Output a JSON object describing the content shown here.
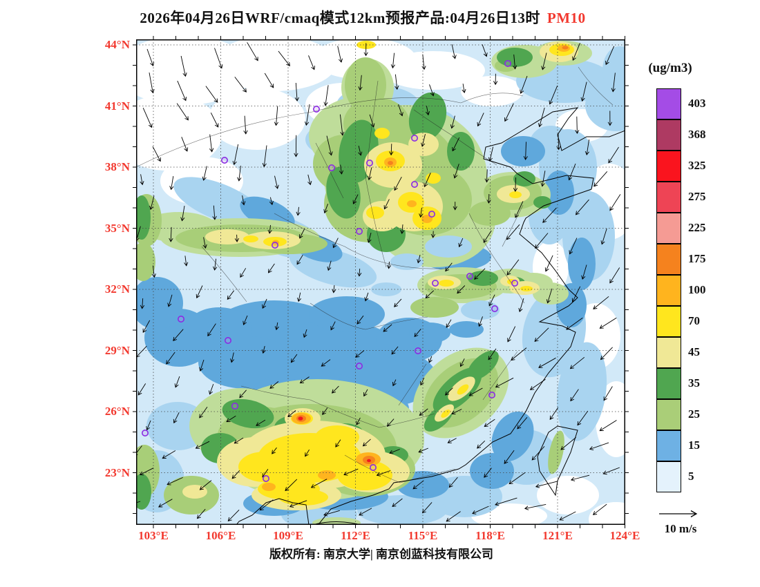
{
  "title": {
    "text": "2026年04月26日WRF/cmaq模式12km预报产品:04月26日13时",
    "pollutant": "PM10"
  },
  "colorbar": {
    "unit": "(ug/m3)",
    "levels": [
      "403",
      "368",
      "325",
      "275",
      "225",
      "175",
      "100",
      "70",
      "45",
      "35",
      "25",
      "15",
      "5"
    ],
    "colors": [
      "#A44CE6",
      "#AE3A62",
      "#FA141E",
      "#EE4455",
      "#F59B94",
      "#F5821E",
      "#FFB41E",
      "#FFE61E",
      "#F0E896",
      "#50A650",
      "#AACE78",
      "#6EB1E4",
      "#E4F2FC"
    ]
  },
  "axes": {
    "lat": [
      "44°N",
      "41°N",
      "38°N",
      "35°N",
      "32°N",
      "29°N",
      "26°N",
      "23°N"
    ],
    "lon": [
      "103°E",
      "106°E",
      "109°E",
      "112°E",
      "115°E",
      "118°E",
      "121°E",
      "124°E"
    ]
  },
  "wind_legend": {
    "label": "10 m/s"
  },
  "footer": {
    "text": "版权所有: 南京大学| 南京创蓝科技有限公司"
  },
  "colors": {
    "accent_red": "#F2382E",
    "axis_label": "#F2382E",
    "marker": "#8A2BE2"
  },
  "chart_data": {
    "type": "heatmap",
    "title": "2026年04月26日WRF/cmaq模式12km预报产品:04月26日13时 PM10",
    "variable": "PM10",
    "unit": "ug/m3",
    "levels": [
      5,
      15,
      25,
      35,
      45,
      70,
      100,
      175,
      225,
      275,
      325,
      368,
      403
    ],
    "palette_low_to_high": [
      "#E4F2FC",
      "#6EB1E4",
      "#AACE78",
      "#50A650",
      "#F0E896",
      "#FFE61E",
      "#FFB41E",
      "#F5821E",
      "#F59B94",
      "#EE4455",
      "#FA141E",
      "#AE3A62",
      "#A44CE6"
    ],
    "x_axis": {
      "label": "longitude",
      "ticks": [
        "103°E",
        "106°E",
        "109°E",
        "112°E",
        "115°E",
        "118°E",
        "121°E",
        "124°E"
      ]
    },
    "y_axis": {
      "label": "latitude",
      "ticks": [
        "23°N",
        "26°N",
        "29°N",
        "32°N",
        "35°N",
        "38°N",
        "41°N",
        "44°N"
      ]
    },
    "overlays": [
      "wind vectors (10 m/s reference arrow)",
      "purple city markers",
      "coastline",
      "province boundaries",
      "dotted lat/lon grid"
    ],
    "legend_position": "right"
  }
}
